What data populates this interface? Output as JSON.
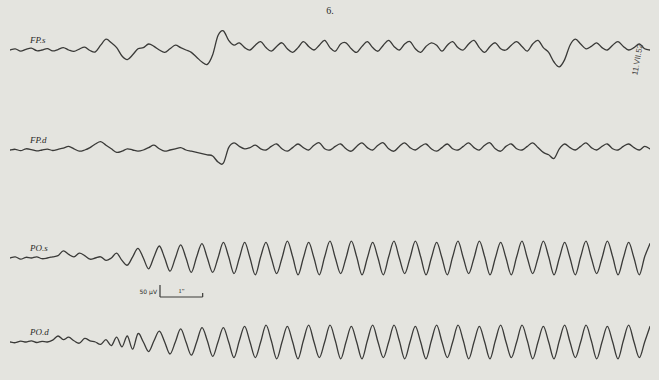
{
  "chart_data": {
    "type": "line",
    "annotations": [
      "6.",
      "11.VII.52"
    ],
    "tick_labels": false,
    "xlim": [
      0,
      15
    ],
    "ylim": [
      -150,
      150
    ],
    "calibration": {
      "voltage": 50,
      "voltage_label": "50 µV",
      "time": 1,
      "time_label": "1\""
    },
    "x": [
      0,
      0.125,
      0.25,
      0.375,
      0.5,
      0.625,
      0.75,
      0.875,
      1,
      1.125,
      1.25,
      1.375,
      1.5,
      1.625,
      1.75,
      1.875,
      2,
      2.125,
      2.25,
      2.375,
      2.5,
      2.625,
      2.75,
      2.875,
      3,
      3.125,
      3.25,
      3.375,
      3.5,
      3.625,
      3.75,
      3.875,
      4,
      4.125,
      4.25,
      4.375,
      4.5,
      4.625,
      4.75,
      4.875,
      5,
      5.125,
      5.25,
      5.375,
      5.5,
      5.625,
      5.75,
      5.875,
      6,
      6.125,
      6.25,
      6.375,
      6.5,
      6.625,
      6.75,
      6.875,
      7,
      7.125,
      7.25,
      7.375,
      7.5,
      7.625,
      7.75,
      7.875,
      8,
      8.125,
      8.25,
      8.375,
      8.5,
      8.625,
      8.75,
      8.875,
      9,
      9.125,
      9.25,
      9.375,
      9.5,
      9.625,
      9.75,
      9.875,
      10,
      10.125,
      10.25,
      10.375,
      10.5,
      10.625,
      10.75,
      10.875,
      11,
      11.125,
      11.25,
      11.375,
      11.5,
      11.625,
      11.75,
      11.875,
      12,
      12.125,
      12.25,
      12.375,
      12.5,
      12.625,
      12.75,
      12.875,
      13,
      13.125,
      13.25,
      13.375,
      13.5,
      13.625,
      13.75,
      13.875,
      14,
      14.125,
      14.25,
      14.375,
      14.5,
      14.625,
      14.75,
      14.875,
      15
    ],
    "series": [
      {
        "name": "FP.s",
        "color": "#3a3a38",
        "values": [
          0,
          5,
          -5,
          3,
          8,
          -3,
          0,
          6,
          -4,
          2,
          10,
          0,
          -6,
          4,
          12,
          -2,
          -8,
          20,
          45,
          30,
          10,
          -25,
          -40,
          -20,
          5,
          10,
          25,
          15,
          0,
          -10,
          5,
          20,
          10,
          0,
          -10,
          -30,
          -50,
          -60,
          -20,
          60,
          80,
          40,
          20,
          30,
          10,
          0,
          20,
          35,
          10,
          -5,
          15,
          30,
          5,
          -10,
          10,
          35,
          15,
          0,
          20,
          40,
          10,
          -5,
          25,
          30,
          5,
          -10,
          15,
          35,
          10,
          -5,
          20,
          40,
          15,
          0,
          25,
          35,
          5,
          -10,
          15,
          30,
          20,
          -5,
          20,
          35,
          10,
          0,
          25,
          40,
          10,
          -10,
          15,
          30,
          5,
          0,
          20,
          35,
          15,
          -5,
          25,
          40,
          10,
          -10,
          -50,
          -70,
          -40,
          20,
          45,
          25,
          5,
          15,
          30,
          10,
          0,
          20,
          35,
          15,
          0,
          10,
          25,
          5,
          0
        ]
      },
      {
        "name": "FP.d",
        "color": "#3a3a38",
        "values": [
          0,
          3,
          -3,
          5,
          2,
          -4,
          0,
          4,
          -2,
          3,
          8,
          15,
          5,
          -5,
          0,
          10,
          25,
          35,
          20,
          5,
          -10,
          -5,
          5,
          0,
          -5,
          0,
          10,
          20,
          5,
          -5,
          0,
          5,
          10,
          0,
          -5,
          -10,
          -15,
          -20,
          -25,
          -50,
          -55,
          10,
          30,
          15,
          5,
          10,
          20,
          5,
          0,
          15,
          25,
          5,
          -5,
          10,
          25,
          10,
          0,
          20,
          30,
          5,
          0,
          15,
          25,
          5,
          -5,
          15,
          30,
          10,
          0,
          20,
          30,
          5,
          -5,
          15,
          30,
          10,
          0,
          15,
          25,
          5,
          -5,
          10,
          25,
          5,
          0,
          15,
          30,
          10,
          0,
          20,
          30,
          5,
          -5,
          15,
          25,
          5,
          0,
          15,
          30,
          10,
          -10,
          -20,
          -35,
          5,
          25,
          10,
          0,
          15,
          30,
          10,
          0,
          15,
          25,
          5,
          0,
          15,
          25,
          10,
          0,
          15,
          5
        ]
      },
      {
        "name": "PO.s",
        "color": "#3a3a38",
        "values": [
          0,
          5,
          -5,
          3,
          0,
          5,
          -3,
          0,
          5,
          10,
          30,
          15,
          5,
          20,
          10,
          -5,
          0,
          5,
          -10,
          0,
          20,
          -10,
          -30,
          5,
          40,
          0,
          -45,
          5,
          50,
          0,
          -55,
          0,
          55,
          0,
          -60,
          5,
          60,
          0,
          -60,
          0,
          65,
          5,
          -65,
          0,
          65,
          0,
          -70,
          5,
          65,
          0,
          -65,
          0,
          70,
          5,
          -70,
          0,
          65,
          0,
          -70,
          5,
          70,
          0,
          -65,
          0,
          70,
          5,
          -70,
          0,
          65,
          0,
          -70,
          5,
          70,
          0,
          -65,
          0,
          70,
          5,
          -70,
          0,
          65,
          0,
          -70,
          5,
          70,
          0,
          -65,
          0,
          70,
          5,
          -70,
          0,
          65,
          0,
          -70,
          5,
          70,
          0,
          -65,
          0,
          70,
          5,
          -70,
          0,
          65,
          0,
          -70,
          5,
          70,
          0,
          -65,
          0,
          70,
          5,
          -70,
          0,
          65,
          0,
          -70,
          5,
          60
        ]
      },
      {
        "name": "PO.d",
        "color": "#3a3a38",
        "values": [
          0,
          -3,
          4,
          0,
          5,
          -2,
          3,
          0,
          8,
          25,
          10,
          20,
          5,
          -5,
          15,
          5,
          0,
          -10,
          10,
          -15,
          20,
          -20,
          25,
          -30,
          35,
          0,
          -40,
          5,
          45,
          0,
          -50,
          0,
          55,
          0,
          -55,
          0,
          60,
          5,
          -60,
          0,
          60,
          0,
          -65,
          5,
          65,
          0,
          -65,
          0,
          70,
          5,
          -70,
          0,
          65,
          0,
          -70,
          5,
          70,
          0,
          -65,
          0,
          70,
          5,
          -70,
          0,
          65,
          0,
          -70,
          5,
          70,
          0,
          -65,
          0,
          70,
          5,
          -70,
          0,
          65,
          0,
          -70,
          5,
          70,
          0,
          -65,
          0,
          70,
          5,
          -70,
          0,
          65,
          0,
          -70,
          5,
          70,
          0,
          -65,
          0,
          70,
          5,
          -70,
          0,
          65,
          0,
          -70,
          5,
          70,
          0,
          -65,
          0,
          70,
          5,
          -70,
          0,
          65,
          0,
          -70,
          5,
          70,
          0,
          -65,
          0,
          65
        ]
      }
    ]
  }
}
